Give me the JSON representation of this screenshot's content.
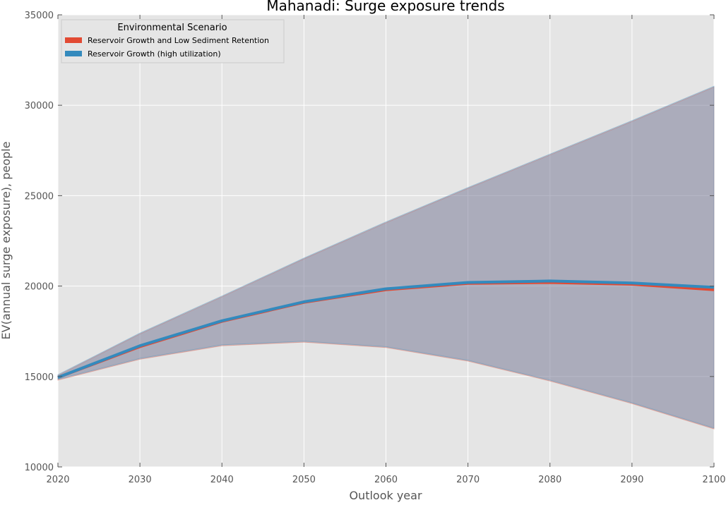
{
  "chart_data": {
    "type": "area",
    "title": "Mahanadi: Surge exposure trends",
    "xlabel": "Outlook year",
    "ylabel": "EV(annual surge exposure), people",
    "xlim": [
      2020,
      2100
    ],
    "ylim": [
      10000,
      35000
    ],
    "xticks": [
      2020,
      2030,
      2040,
      2050,
      2060,
      2070,
      2080,
      2090,
      2100
    ],
    "yticks": [
      10000,
      15000,
      20000,
      25000,
      30000,
      35000
    ],
    "xtick_labels": [
      "2020",
      "2030",
      "2040",
      "2050",
      "2060",
      "2070",
      "2080",
      "2090",
      "2100"
    ],
    "ytick_labels": [
      "10000",
      "15000",
      "20000",
      "25000",
      "30000",
      "35000"
    ],
    "grid": true,
    "legend": {
      "title": "Environmental Scenario",
      "placement": "top-left"
    },
    "x": [
      2020,
      2030,
      2040,
      2050,
      2060,
      2070,
      2080,
      2090,
      2100
    ],
    "series": [
      {
        "name": "Reservoir Growth and Low Sediment Retention",
        "color": "#E24A33",
        "values": [
          14950,
          16650,
          18050,
          19100,
          19800,
          20150,
          20200,
          20100,
          19800
        ],
        "upper": [
          15050,
          17350,
          19400,
          21500,
          23500,
          25400,
          27250,
          29100,
          31000
        ],
        "lower": [
          14800,
          15950,
          16700,
          16900,
          16600,
          15850,
          14750,
          13500,
          12100
        ]
      },
      {
        "name": "Reservoir Growth (high utilization)",
        "color": "#348ABD",
        "values": [
          14950,
          16700,
          18080,
          19130,
          19850,
          20200,
          20280,
          20170,
          19930
        ],
        "upper": [
          15100,
          17400,
          19450,
          21550,
          23550,
          25450,
          27300,
          29150,
          31050
        ],
        "lower": [
          14850,
          16000,
          16750,
          16950,
          16650,
          15900,
          14800,
          13550,
          12150
        ]
      }
    ]
  },
  "colors": {
    "plot_background": "#E5E5E5",
    "grid": "#FFFFFF",
    "band_fill": "#988ED5",
    "text": "#555555"
  }
}
